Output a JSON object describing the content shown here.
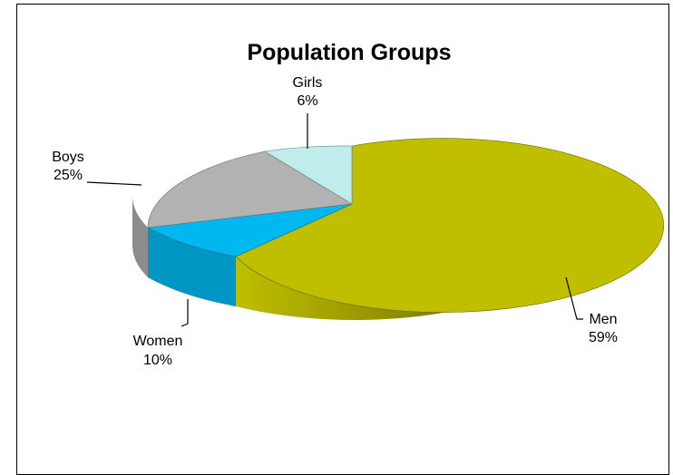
{
  "chart_data": {
    "type": "pie",
    "title": "Population Groups",
    "categories": [
      "Men",
      "Women",
      "Boys",
      "Girls"
    ],
    "values": [
      59,
      10,
      25,
      6
    ],
    "value_labels": [
      "59%",
      "10%",
      "25%",
      "6%"
    ],
    "colors": [
      "#BFBF00",
      "#00B8F0",
      "#B2B2B2",
      "#C0ECEC"
    ],
    "side_colors": [
      "#8A8A00",
      "#0096C4",
      "#8C8C8C",
      "#9CC8C8"
    ],
    "legend": "none",
    "style": "3d-exploded-perspective"
  }
}
